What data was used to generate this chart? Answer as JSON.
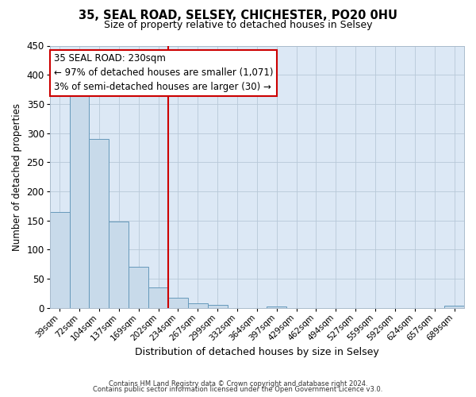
{
  "title_line1": "35, SEAL ROAD, SELSEY, CHICHESTER, PO20 0HU",
  "title_line2": "Size of property relative to detached houses in Selsey",
  "xlabel": "Distribution of detached houses by size in Selsey",
  "ylabel": "Number of detached properties",
  "bar_labels": [
    "39sqm",
    "72sqm",
    "104sqm",
    "137sqm",
    "169sqm",
    "202sqm",
    "234sqm",
    "267sqm",
    "299sqm",
    "332sqm",
    "364sqm",
    "397sqm",
    "429sqm",
    "462sqm",
    "494sqm",
    "527sqm",
    "559sqm",
    "592sqm",
    "624sqm",
    "657sqm",
    "689sqm"
  ],
  "bar_values": [
    165,
    375,
    290,
    148,
    70,
    35,
    17,
    8,
    5,
    0,
    0,
    2,
    0,
    0,
    0,
    0,
    0,
    0,
    0,
    0,
    3
  ],
  "bar_color": "#c8daea",
  "bar_edge_color": "#6699bb",
  "vline_color": "#cc0000",
  "vline_x_index": 6,
  "annotation_title": "35 SEAL ROAD: 230sqm",
  "annotation_line1": "← 97% of detached houses are smaller (1,071)",
  "annotation_line2": "3% of semi-detached houses are larger (30) →",
  "annotation_box_facecolor": "#ffffff",
  "annotation_box_edgecolor": "#cc0000",
  "ylim": [
    0,
    450
  ],
  "yticks": [
    0,
    50,
    100,
    150,
    200,
    250,
    300,
    350,
    400,
    450
  ],
  "figure_facecolor": "#ffffff",
  "axes_facecolor": "#dce8f5",
  "grid_color": "#b8c8d8",
  "footer_line1": "Contains HM Land Registry data © Crown copyright and database right 2024.",
  "footer_line2": "Contains public sector information licensed under the Open Government Licence v3.0.",
  "title1_fontsize": 10.5,
  "title2_fontsize": 9,
  "xlabel_fontsize": 9,
  "ylabel_fontsize": 8.5,
  "tick_fontsize": 7.5,
  "ytick_fontsize": 8.5,
  "annotation_fontsize": 8.5,
  "footer_fontsize": 6.0
}
